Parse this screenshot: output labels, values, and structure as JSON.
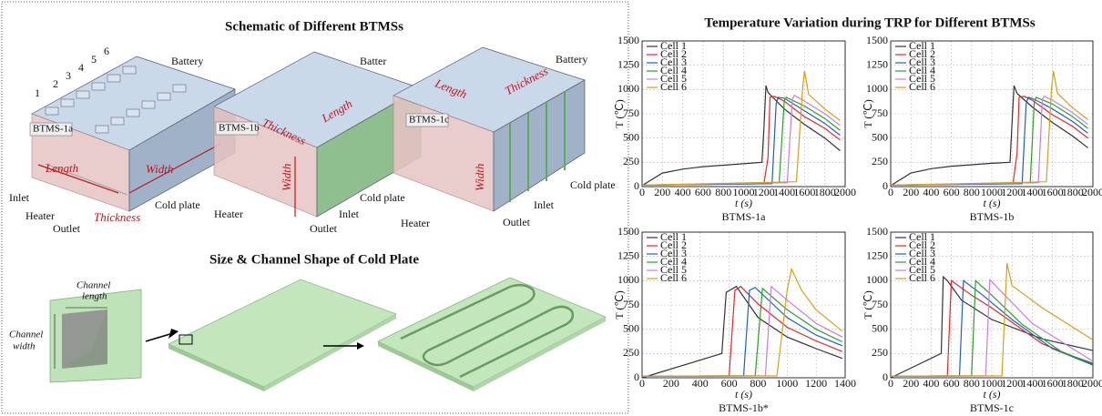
{
  "schematic": {
    "title": "Schematic of Different BTMSs",
    "a": {
      "name": "BTMS-1a",
      "cells": [
        "1",
        "2",
        "3",
        "4",
        "5",
        "6"
      ],
      "battery": "Battery",
      "length": "Length",
      "width": "Width",
      "inlet": "Inlet",
      "heater": "Heater",
      "outlet": "Outlet",
      "thickness": "Thickness",
      "cold_plate": "Cold plate"
    },
    "b": {
      "name": "BTMS-1b",
      "battery": "Batter",
      "thickness": "Thickness",
      "length": "Length",
      "width": "Width",
      "heater": "Heater",
      "cold_plate": "Cold plate",
      "inlet": "Inlet",
      "outlet": "Outlet"
    },
    "c": {
      "name": "BTMS-1c",
      "battery": "Battery",
      "length": "Length",
      "thickness": "Thickness",
      "width": "Width",
      "cold_plate": "Cold plate",
      "inlet": "Inlet",
      "outlet": "Outlet",
      "heater": "Heater"
    }
  },
  "cold_plate": {
    "title": "Size & Channel Shape of Cold Plate",
    "channel_length": [
      "Channel",
      "length"
    ],
    "channel_width": [
      "Channel",
      "width"
    ]
  },
  "charts_title": "Temperature Variation during TRP for Different BTMSs",
  "chart_data": [
    {
      "type": "line",
      "title": "BTMS-1a",
      "xlabel": "t (s)",
      "ylabel": "T (℃)",
      "xlim": [
        0,
        2000
      ],
      "ylim": [
        0,
        1500
      ],
      "xticks": [
        0,
        200,
        400,
        600,
        800,
        1000,
        1200,
        1400,
        1600,
        1800,
        2000
      ],
      "yticks": [
        0,
        250,
        500,
        750,
        1000,
        1250,
        1500
      ],
      "grid": true,
      "series": [
        {
          "name": "Cell 1",
          "color": "#333333",
          "x": [
            0,
            200,
            400,
            600,
            800,
            1000,
            1180,
            1200,
            1220,
            1240,
            1400,
            1600,
            1800,
            1950
          ],
          "values": [
            10,
            140,
            180,
            205,
            220,
            235,
            250,
            600,
            1040,
            970,
            800,
            640,
            500,
            370
          ]
        },
        {
          "name": "Cell 2",
          "color": "#e3262b",
          "x": [
            0,
            1200,
            1240,
            1260,
            1300,
            1400,
            1600,
            1800,
            1950
          ],
          "values": [
            15,
            30,
            300,
            920,
            930,
            880,
            720,
            600,
            480
          ]
        },
        {
          "name": "Cell 3",
          "color": "#1f5fbf",
          "x": [
            0,
            1280,
            1320,
            1340,
            1400,
            1600,
            1800,
            1950
          ],
          "values": [
            15,
            30,
            850,
            920,
            910,
            780,
            650,
            530
          ]
        },
        {
          "name": "Cell 4",
          "color": "#2aa02a",
          "x": [
            0,
            1350,
            1400,
            1420,
            1600,
            1800,
            1950
          ],
          "values": [
            15,
            40,
            880,
            920,
            830,
            700,
            580
          ]
        },
        {
          "name": "Cell 5",
          "color": "#c77ee0",
          "x": [
            0,
            1430,
            1480,
            1500,
            1600,
            1800,
            1950
          ],
          "values": [
            15,
            40,
            900,
            940,
            880,
            750,
            630
          ]
        },
        {
          "name": "Cell 6",
          "color": "#d4a017",
          "x": [
            0,
            1520,
            1580,
            1600,
            1640,
            1800,
            1950
          ],
          "values": [
            15,
            50,
            1000,
            1190,
            950,
            800,
            680
          ]
        }
      ]
    },
    {
      "type": "line",
      "title": "BTMS-1b",
      "xlabel": "t (s)",
      "ylabel": "T (℃)",
      "xlim": [
        0,
        2000
      ],
      "ylim": [
        0,
        1500
      ],
      "xticks": [
        0,
        200,
        400,
        600,
        800,
        1000,
        1200,
        1400,
        1600,
        1800,
        2000
      ],
      "yticks": [
        0,
        250,
        500,
        750,
        1000,
        1250,
        1500
      ],
      "grid": true,
      "series": [
        {
          "name": "Cell 1",
          "color": "#333333",
          "x": [
            0,
            200,
            400,
            600,
            800,
            1000,
            1180,
            1200,
            1220,
            1250,
            1400,
            1600,
            1800,
            1950
          ],
          "values": [
            10,
            140,
            185,
            210,
            225,
            240,
            250,
            650,
            1040,
            960,
            820,
            660,
            520,
            400
          ]
        },
        {
          "name": "Cell 2",
          "color": "#e3262b",
          "x": [
            0,
            1210,
            1250,
            1270,
            1320,
            1400,
            1600,
            1800,
            1950
          ],
          "values": [
            15,
            30,
            350,
            920,
            930,
            890,
            740,
            620,
            500
          ]
        },
        {
          "name": "Cell 3",
          "color": "#1f5fbf",
          "x": [
            0,
            1300,
            1340,
            1360,
            1420,
            1600,
            1800,
            1950
          ],
          "values": [
            15,
            30,
            850,
            920,
            900,
            800,
            670,
            550
          ]
        },
        {
          "name": "Cell 4",
          "color": "#2aa02a",
          "x": [
            0,
            1380,
            1420,
            1440,
            1600,
            1800,
            1950
          ],
          "values": [
            15,
            40,
            870,
            920,
            850,
            720,
            600
          ]
        },
        {
          "name": "Cell 5",
          "color": "#c77ee0",
          "x": [
            0,
            1460,
            1500,
            1520,
            1600,
            1800,
            1950
          ],
          "values": [
            15,
            40,
            900,
            930,
            890,
            760,
            640
          ]
        },
        {
          "name": "Cell 6",
          "color": "#d4a017",
          "x": [
            0,
            1540,
            1590,
            1610,
            1650,
            1800,
            1950
          ],
          "values": [
            15,
            50,
            1000,
            1190,
            960,
            810,
            690
          ]
        }
      ]
    },
    {
      "type": "line",
      "title": "BTMS-1b*",
      "xlabel": "t (s)",
      "ylabel": "T (℃)",
      "xlim": [
        0,
        1400
      ],
      "ylim": [
        0,
        1500
      ],
      "xticks": [
        0,
        200,
        400,
        600,
        800,
        1000,
        1200,
        1400
      ],
      "yticks": [
        0,
        250,
        500,
        750,
        1000,
        1250,
        1500
      ],
      "grid": true,
      "series": [
        {
          "name": "Cell 1",
          "color": "#333333",
          "x": [
            0,
            550,
            580,
            650,
            800,
            1000,
            1200,
            1380
          ],
          "values": [
            0,
            250,
            880,
            940,
            620,
            420,
            300,
            200
          ]
        },
        {
          "name": "Cell 2",
          "color": "#e3262b",
          "x": [
            0,
            600,
            640,
            680,
            800,
            1000,
            1200,
            1380
          ],
          "values": [
            15,
            20,
            900,
            940,
            760,
            520,
            380,
            270
          ]
        },
        {
          "name": "Cell 3",
          "color": "#1f5fbf",
          "x": [
            0,
            700,
            740,
            780,
            1000,
            1200,
            1380
          ],
          "values": [
            15,
            20,
            900,
            930,
            620,
            440,
            330
          ]
        },
        {
          "name": "Cell 4",
          "color": "#2aa02a",
          "x": [
            0,
            780,
            830,
            1000,
            1200,
            1380
          ],
          "values": [
            15,
            20,
            920,
            700,
            500,
            370
          ]
        },
        {
          "name": "Cell 5",
          "color": "#c77ee0",
          "x": [
            0,
            850,
            890,
            1000,
            1200,
            1380
          ],
          "values": [
            15,
            20,
            940,
            800,
            560,
            420
          ]
        },
        {
          "name": "Cell 6",
          "color": "#d4a017",
          "x": [
            0,
            930,
            1000,
            1030,
            1100,
            1200,
            1380
          ],
          "values": [
            15,
            20,
            900,
            1120,
            900,
            700,
            480
          ]
        }
      ]
    },
    {
      "type": "line",
      "title": "BTMS-1c",
      "xlabel": "t (s)",
      "ylabel": "T (℃)",
      "xlim": [
        0,
        2000
      ],
      "ylim": [
        0,
        1500
      ],
      "xticks": [
        0,
        200,
        400,
        600,
        800,
        1000,
        1200,
        1400,
        1600,
        1800,
        2000
      ],
      "yticks": [
        0,
        250,
        500,
        750,
        1000,
        1250,
        1500
      ],
      "grid": true,
      "series": [
        {
          "name": "Cell 1",
          "color": "#333333",
          "x": [
            0,
            500,
            520,
            560,
            700,
            1000,
            1500,
            2000
          ],
          "values": [
            0,
            250,
            1040,
            1000,
            800,
            600,
            400,
            280
          ]
        },
        {
          "name": "Cell 2",
          "color": "#e3262b",
          "x": [
            0,
            560,
            600,
            800,
            1000,
            1500,
            2000
          ],
          "values": [
            15,
            20,
            1000,
            850,
            720,
            350,
            140
          ]
        },
        {
          "name": "Cell 3",
          "color": "#1f5fbf",
          "x": [
            0,
            680,
            720,
            900,
            1200,
            1600,
            2000
          ],
          "values": [
            15,
            20,
            1000,
            860,
            600,
            300,
            130
          ]
        },
        {
          "name": "Cell 4",
          "color": "#2aa02a",
          "x": [
            0,
            800,
            840,
            1000,
            1300,
            1700,
            2000
          ],
          "values": [
            15,
            20,
            1000,
            850,
            550,
            260,
            150
          ]
        },
        {
          "name": "Cell 5",
          "color": "#c77ee0",
          "x": [
            0,
            940,
            980,
            1100,
            1400,
            2000
          ],
          "values": [
            15,
            20,
            1010,
            880,
            560,
            170
          ]
        },
        {
          "name": "Cell 6",
          "color": "#d4a017",
          "x": [
            0,
            1100,
            1150,
            1200,
            1500,
            2000
          ],
          "values": [
            15,
            20,
            1180,
            950,
            720,
            390
          ]
        }
      ]
    }
  ]
}
